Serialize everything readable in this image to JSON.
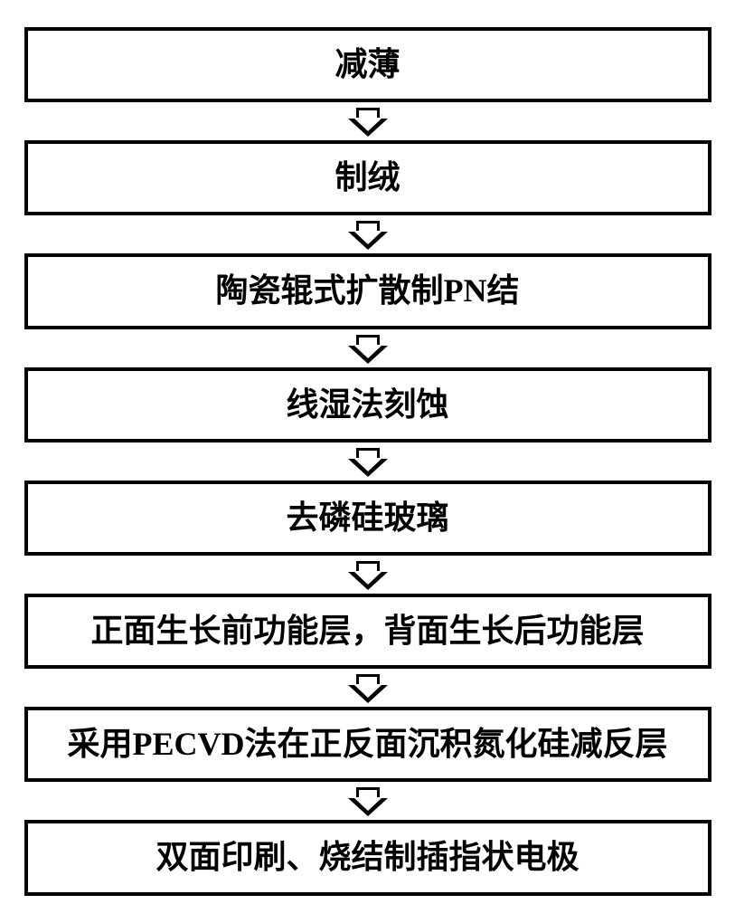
{
  "flowchart": {
    "type": "flowchart",
    "direction": "vertical",
    "background_color": "#ffffff",
    "box_style": {
      "border_color": "#000000",
      "border_width": 4,
      "fill_color": "#ffffff",
      "font_size": 36,
      "font_weight": "bold",
      "font_color": "#000000",
      "padding": 16
    },
    "arrow_style": {
      "type": "hollow-block-arrow",
      "stroke_color": "#000000",
      "fill_color": "#ffffff",
      "stroke_width": 3
    },
    "steps": [
      {
        "label": "减薄"
      },
      {
        "label": "制绒"
      },
      {
        "label": "陶瓷辊式扩散制PN结"
      },
      {
        "label": "线湿法刻蚀"
      },
      {
        "label": "去磷硅玻璃"
      },
      {
        "label": "正面生长前功能层，背面生长后功能层"
      },
      {
        "label": "采用PECVD法在正反面沉积氮化硅减反层"
      },
      {
        "label": "双面印刷、烧结制插指状电极"
      }
    ]
  }
}
